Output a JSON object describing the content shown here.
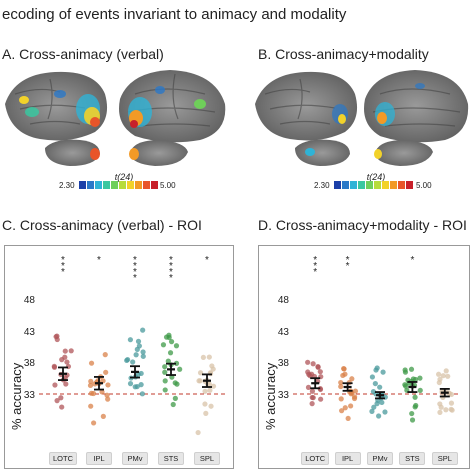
{
  "figure": {
    "title": "ecoding of events invariant to animacy and modality",
    "panelA": {
      "title": "A. Cross-animacy (verbal)"
    },
    "panelB": {
      "title": "B. Cross-animacy+modality"
    },
    "colorbar": {
      "label": "t(24)",
      "min": "2.30",
      "max": "5.00",
      "colors": [
        "#1b3fa8",
        "#2a78c8",
        "#2fb3d6",
        "#39c7a0",
        "#6fcf5a",
        "#b7dc3a",
        "#f2d22a",
        "#f29a26",
        "#e8552a",
        "#c8202a"
      ]
    },
    "panelC": {
      "title": "C. Cross-animacy (verbal) - ROI"
    },
    "panelD": {
      "title": "D. Cross-animacy+modality - ROI"
    },
    "chance_color": "#c0392b"
  },
  "chart_data": [
    {
      "type": "scatter",
      "title": "C. Cross-animacy (verbal) - ROI",
      "ylabel": "% accuracy",
      "yticks": [
        33,
        38,
        43,
        48
      ],
      "ylim": [
        26,
        52
      ],
      "chance": 33.3,
      "categories": [
        "LOTC",
        "IPL",
        "PMv",
        "STS",
        "SPL"
      ],
      "significance": [
        "***",
        "*",
        "****",
        "****",
        "*"
      ],
      "colors": [
        "#b0555a",
        "#d9824a",
        "#4a9a9c",
        "#3f9a48",
        "#d8c3a8"
      ],
      "means": [
        36.5,
        35.0,
        36.8,
        37.2,
        35.4
      ],
      "sem": [
        1.0,
        1.0,
        0.9,
        0.9,
        1.0
      ]
    },
    {
      "type": "scatter",
      "title": "D. Cross-animacy+modality - ROI",
      "ylabel": "% accuracy",
      "yticks": [
        33,
        38,
        43,
        48
      ],
      "ylim": [
        26,
        52
      ],
      "chance": 33.3,
      "categories": [
        "LOTC",
        "IPL",
        "PMv",
        "STS",
        "SPL"
      ],
      "significance": [
        "***",
        "**",
        "",
        "*",
        ""
      ],
      "colors": [
        "#b0555a",
        "#d9824a",
        "#4a9a9c",
        "#3f9a48",
        "#d8c3a8"
      ],
      "means": [
        35.0,
        34.4,
        33.1,
        34.4,
        33.5
      ],
      "sem": [
        0.8,
        0.6,
        0.5,
        0.8,
        0.6
      ]
    }
  ]
}
